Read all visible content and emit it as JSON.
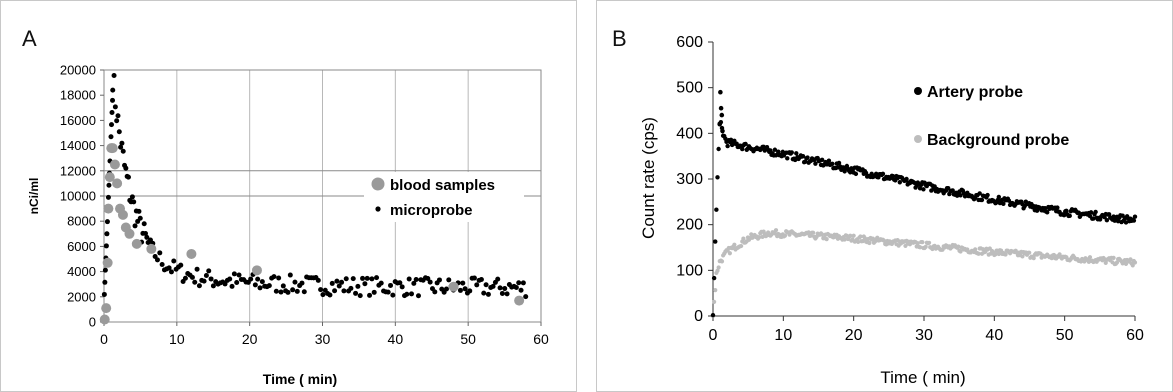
{
  "chart_data": [
    {
      "type": "scatter",
      "panel_label": "A",
      "xlabel": "Time ( min)",
      "ylabel": "nCi/ml",
      "xlim": [
        0,
        60
      ],
      "ylim": [
        0,
        20000
      ],
      "xticks": [
        0,
        10,
        20,
        30,
        40,
        50,
        60
      ],
      "yticks": [
        0,
        2000,
        4000,
        6000,
        8000,
        10000,
        12000,
        14000,
        16000,
        18000,
        20000
      ],
      "grid": "vertical",
      "legend_position": "right",
      "series": [
        {
          "name": "blood samples",
          "color": "#9a9a9a",
          "marker": "large-dot",
          "x": [
            0.1,
            0.3,
            0.5,
            0.6,
            0.8,
            1.0,
            1.2,
            1.5,
            1.8,
            2.2,
            2.6,
            3.0,
            3.5,
            4.5,
            6.5,
            12.0,
            21.0,
            48.0,
            57.0
          ],
          "y": [
            200,
            1100,
            4700,
            9000,
            11500,
            13800,
            13800,
            12500,
            11000,
            9000,
            8500,
            7500,
            7000,
            6200,
            5800,
            5400,
            4100,
            2800,
            1700
          ]
        },
        {
          "name": "microprobe",
          "color": "#000000",
          "marker": "small-dot",
          "model": "peak-decay"
        }
      ]
    },
    {
      "type": "scatter",
      "panel_label": "B",
      "xlabel": "Time ( min)",
      "ylabel": "Count rate (cps)",
      "xlim": [
        0,
        60
      ],
      "ylim": [
        0,
        600
      ],
      "xticks": [
        0,
        10,
        20,
        30,
        40,
        50,
        60
      ],
      "yticks": [
        0,
        100,
        200,
        300,
        400,
        500,
        600
      ],
      "grid": false,
      "legend_position": "top-right",
      "series": [
        {
          "name": "Artery probe",
          "color": "#000000",
          "marker": "dense-dots",
          "x": [
            0,
            0.5,
            1,
            1.5,
            2,
            5,
            10,
            20,
            30,
            40,
            50,
            60
          ],
          "y": [
            0,
            250,
            430,
            395,
            380,
            370,
            355,
            320,
            285,
            255,
            228,
            210
          ]
        },
        {
          "name": "Background probe",
          "color": "#bdbdbd",
          "marker": "dense-dots",
          "x": [
            0,
            0.5,
            1,
            2,
            5,
            8,
            10,
            20,
            30,
            40,
            50,
            60
          ],
          "y": [
            0,
            95,
            120,
            140,
            170,
            182,
            180,
            170,
            155,
            140,
            128,
            117
          ]
        }
      ]
    }
  ]
}
